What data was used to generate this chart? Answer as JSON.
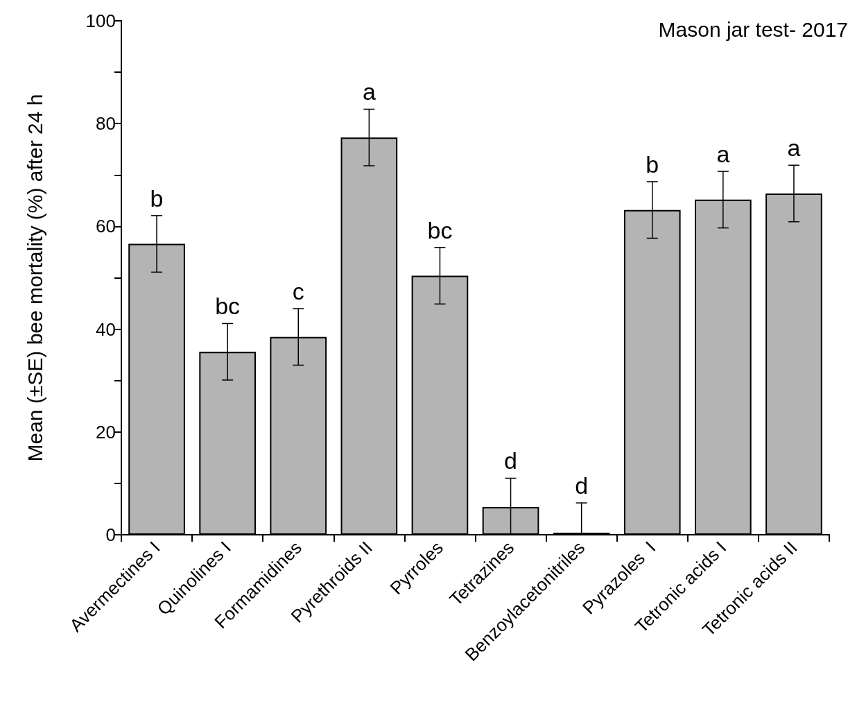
{
  "chart_data": {
    "type": "bar",
    "title": "Mason jar test- 2017",
    "ylabel": "Mean (±SE) bee mortality (%) after 24 h",
    "categories": [
      "Avermectines I",
      "Quinolines I",
      "Formamidines",
      "Pyrethroids II",
      "Pyrroles",
      "Tetrazines",
      "Benzoylacetonitriles",
      "Pyrazoles  I",
      "Tetronic acids I",
      "Tetronic acids II"
    ],
    "values": [
      56.6,
      35.6,
      38.5,
      77.3,
      50.4,
      5.4,
      0.4,
      63.2,
      65.2,
      66.4
    ],
    "errors": [
      5.5,
      5.5,
      5.5,
      5.5,
      5.5,
      [
        0,
        11.0
      ],
      [
        0,
        6.2
      ],
      5.5,
      5.5,
      5.5
    ],
    "color": "#b4b4b4",
    "ylim": [
      0,
      100
    ],
    "yticks": [
      0,
      {
        "value": 10,
        "label": null
      },
      20,
      {
        "value": 30,
        "label": null
      },
      40,
      {
        "value": 50,
        "label": null
      },
      60,
      {
        "value": 70,
        "label": null
      },
      80,
      {
        "value": 90,
        "label": null
      },
      100
    ],
    "grid": false,
    "annotations": [
      "b",
      "bc",
      "c",
      "a",
      "bc",
      "d",
      "d",
      "b",
      "a",
      "a"
    ]
  }
}
